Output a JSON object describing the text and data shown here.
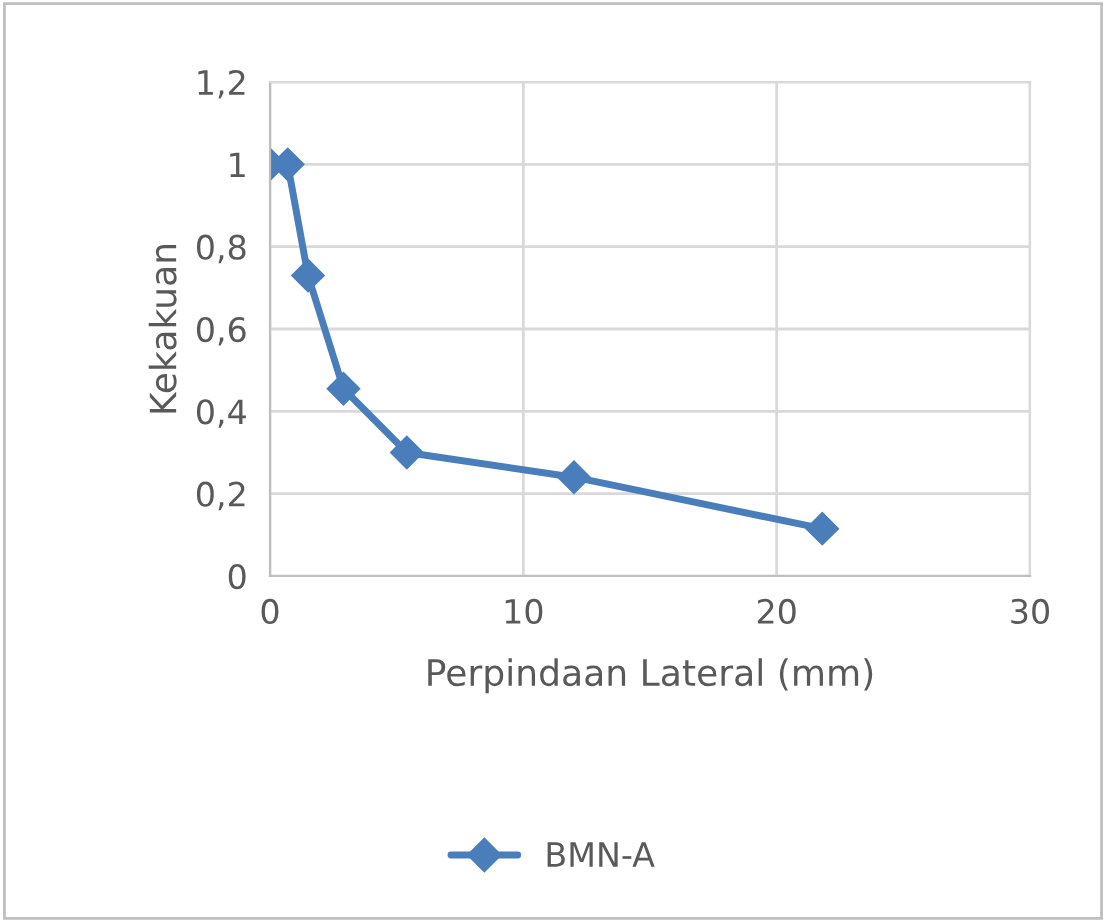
{
  "chart_data": {
    "type": "line",
    "xlabel": "Perpindaan Lateral (mm)",
    "ylabel": "Kekakuan",
    "x": [
      0,
      0.7,
      1.5,
      2.9,
      5.4,
      12.0,
      21.8
    ],
    "series": [
      {
        "name": "BMN-A",
        "color": "#4a7ebb",
        "values": [
          1.0,
          1.0,
          0.73,
          0.455,
          0.3,
          0.24,
          0.115
        ]
      }
    ],
    "xlim": [
      0,
      30
    ],
    "xticks": [
      0,
      10,
      20,
      30
    ],
    "ylim": [
      0,
      1.2
    ],
    "yticks": [
      0,
      {
        "value": 0.2,
        "label": "0,2"
      },
      {
        "value": 0.4,
        "label": "0,4"
      },
      {
        "value": 0.6,
        "label": "0,6"
      },
      {
        "value": 0.8,
        "label": "0,8"
      },
      1,
      {
        "value": 1.2,
        "label": "1,2"
      }
    ],
    "grid": true,
    "legend": "bottom",
    "marker": "diamond",
    "line_style": "solid"
  }
}
